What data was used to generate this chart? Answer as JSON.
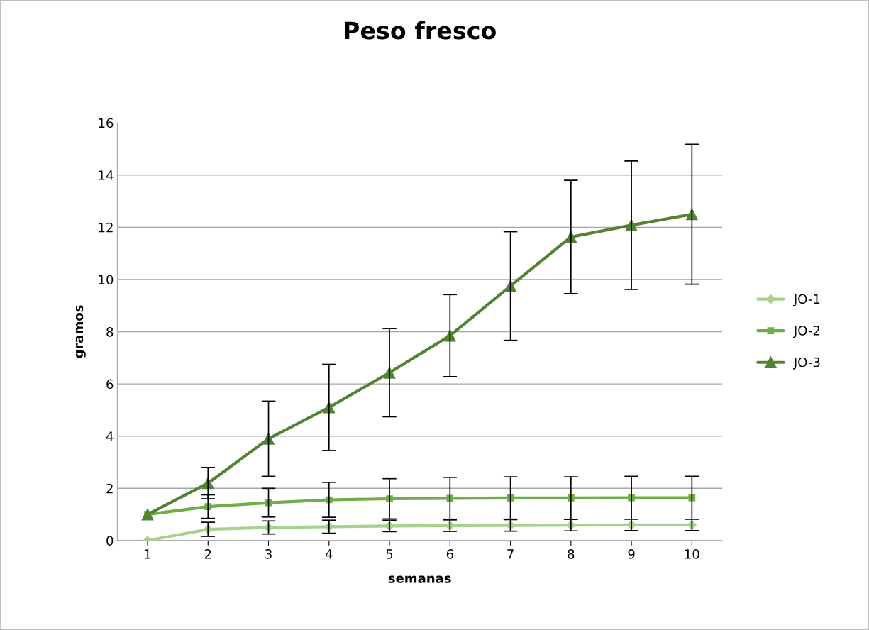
{
  "chart_data": {
    "type": "line",
    "title": "Peso fresco",
    "xlabel": "semanas",
    "ylabel": "gramos",
    "categories": [
      "1",
      "2",
      "3",
      "4",
      "5",
      "6",
      "7",
      "8",
      "9",
      "10"
    ],
    "series": [
      {
        "name": "JO-1",
        "color": "#a9d18e",
        "marker": "diamond",
        "values": [
          0,
          0.43,
          0.5,
          0.53,
          0.56,
          0.57,
          0.58,
          0.59,
          0.6,
          0.6
        ],
        "errors": [
          null,
          0.27,
          0.25,
          0.25,
          0.22,
          0.22,
          0.22,
          0.22,
          0.22,
          0.22
        ]
      },
      {
        "name": "JO-2",
        "color": "#70ad47",
        "marker": "square",
        "values": [
          1.0,
          1.3,
          1.45,
          1.56,
          1.6,
          1.62,
          1.63,
          1.63,
          1.64,
          1.64
        ],
        "errors": [
          null,
          0.45,
          0.55,
          0.67,
          0.77,
          0.8,
          0.81,
          0.81,
          0.82,
          0.82
        ]
      },
      {
        "name": "JO-3",
        "color": "#548235",
        "marker": "triangle",
        "values": [
          1.0,
          2.2,
          3.9,
          5.1,
          6.43,
          7.85,
          9.75,
          11.63,
          12.08,
          12.5
        ],
        "errors": [
          null,
          0.6,
          1.44,
          1.65,
          1.69,
          1.57,
          2.08,
          2.17,
          2.46,
          2.68
        ]
      }
    ],
    "ylim": [
      0,
      16
    ],
    "yticks": [
      0,
      2,
      4,
      6,
      8,
      10,
      12,
      14,
      16
    ],
    "grid": "y",
    "legend": "right"
  }
}
